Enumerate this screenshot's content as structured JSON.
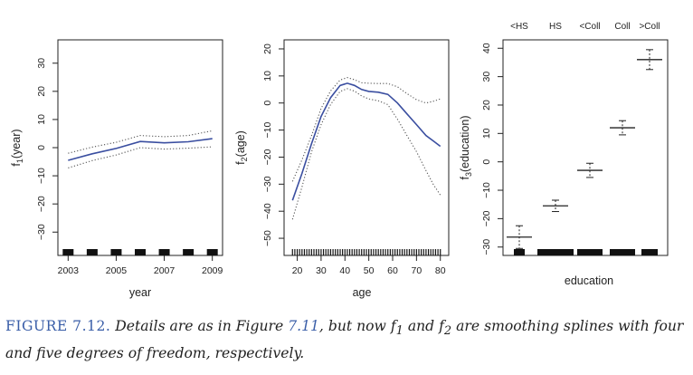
{
  "chart_data": [
    {
      "type": "line",
      "xlabel": "year",
      "ylabel": "f1(year)",
      "xlim": [
        2002.8,
        2009.2
      ],
      "ylim": [
        -37,
        37
      ],
      "xticks": [
        2003,
        2005,
        2007,
        2009
      ],
      "yticks": [
        -30,
        -20,
        -10,
        0,
        10,
        20,
        30
      ],
      "series": [
        {
          "role": "fit",
          "color": "#3a4ea0",
          "style": "solid",
          "x": [
            2003,
            2004,
            2005,
            2006,
            2007,
            2008,
            2009
          ],
          "y": [
            -4.5,
            -2.2,
            -0.3,
            2.2,
            1.7,
            2.1,
            3.2
          ]
        },
        {
          "role": "upper",
          "color": "#555555",
          "style": "dotted",
          "x": [
            2003,
            2004,
            2005,
            2006,
            2007,
            2008,
            2009
          ],
          "y": [
            -2.0,
            0.2,
            1.9,
            4.3,
            3.9,
            4.3,
            6.0
          ]
        },
        {
          "role": "lower",
          "color": "#555555",
          "style": "dotted",
          "x": [
            2003,
            2004,
            2005,
            2006,
            2007,
            2008,
            2009
          ],
          "y": [
            -7.2,
            -4.6,
            -2.6,
            0.0,
            -0.5,
            -0.2,
            0.3
          ]
        }
      ],
      "rug": [
        2003,
        2004,
        2005,
        2006,
        2007,
        2008,
        2009
      ]
    },
    {
      "type": "line",
      "xlabel": "age",
      "ylabel": "f2(age)",
      "xlim": [
        16,
        82
      ],
      "ylim": [
        -55,
        22
      ],
      "xticks": [
        20,
        30,
        40,
        50,
        60,
        70,
        80
      ],
      "yticks": [
        -50,
        -40,
        -30,
        -20,
        -10,
        0,
        10,
        20
      ],
      "series": [
        {
          "role": "fit",
          "color": "#3a4ea0",
          "style": "solid",
          "x": [
            18,
            22,
            26,
            30,
            34,
            38,
            41,
            44,
            47,
            50,
            54,
            58,
            62,
            66,
            70,
            74,
            77,
            80
          ],
          "y": [
            -36,
            -26,
            -15,
            -5,
            2,
            6.5,
            7.3,
            6.5,
            5.0,
            4.3,
            4.0,
            3.2,
            0,
            -4,
            -8,
            -12,
            -14,
            -16
          ]
        },
        {
          "role": "upper",
          "color": "#555555",
          "style": "dotted",
          "x": [
            18,
            22,
            26,
            30,
            34,
            38,
            41,
            44,
            47,
            50,
            54,
            58,
            62,
            66,
            70,
            74,
            77,
            80
          ],
          "y": [
            -29,
            -21,
            -12,
            -2,
            4.5,
            8.5,
            9.4,
            8.6,
            7.5,
            7.3,
            7.2,
            7.2,
            6.0,
            3.5,
            1.2,
            0.0,
            0.6,
            1.5
          ]
        },
        {
          "role": "lower",
          "color": "#555555",
          "style": "dotted",
          "x": [
            18,
            22,
            26,
            30,
            34,
            38,
            41,
            44,
            47,
            50,
            54,
            58,
            62,
            66,
            70,
            74,
            77,
            80
          ],
          "y": [
            -43,
            -31,
            -18,
            -8,
            -0.5,
            4.3,
            5.3,
            4.4,
            2.6,
            1.5,
            0.8,
            -0.6,
            -6,
            -12,
            -18,
            -25,
            -30,
            -34
          ]
        }
      ],
      "rug_range": [
        18,
        80
      ]
    },
    {
      "type": "errorbar",
      "xlabel": "education",
      "ylabel": "f3(education)",
      "ylim": [
        -32,
        42
      ],
      "yticks": [
        -30,
        -20,
        -10,
        0,
        10,
        20,
        30,
        40
      ],
      "categories": [
        "<HS",
        "HS",
        "<Coll",
        "Coll",
        ">Coll"
      ],
      "estimates": [
        -26.5,
        -15.5,
        -3,
        12,
        36
      ],
      "upper": [
        -22.5,
        -13.5,
        -0.5,
        14.5,
        39.5
      ],
      "lower": [
        -30.5,
        -17.5,
        -5.5,
        9.5,
        32.5
      ]
    }
  ],
  "caption": {
    "label": "FIGURE 7.12.",
    "text_1": " Details are as in Figure ",
    "ref": "7.11",
    "text_2": ", but now f",
    "sub_1": "1",
    "text_3": " and f",
    "sub_2": "2",
    "text_4": " are smoothing splines with four and five degrees of freedom, respectively."
  }
}
